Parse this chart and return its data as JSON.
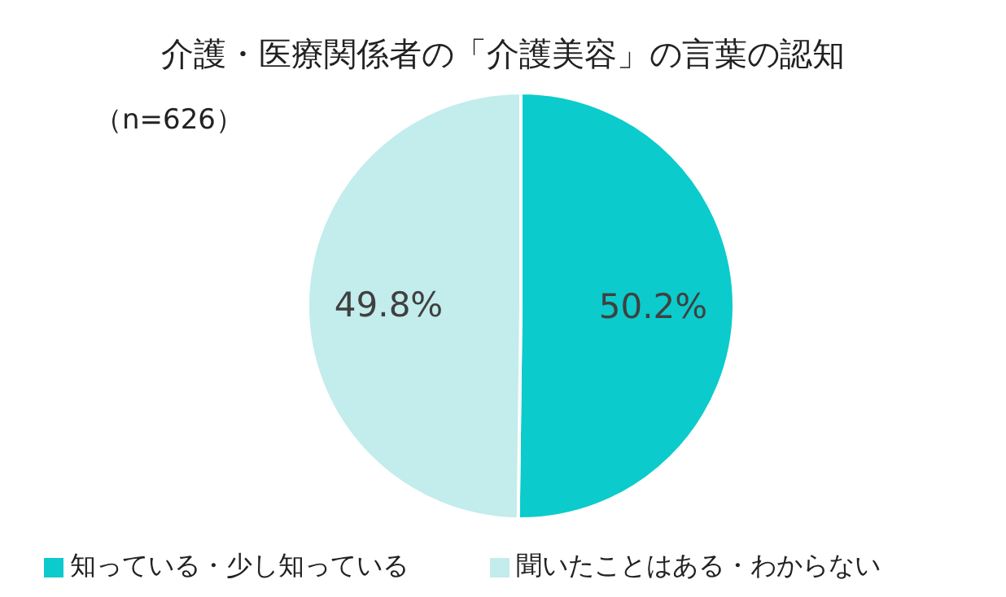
{
  "chart_data": {
    "type": "pie",
    "title": "介護・医療関係者の「介護美容」の言葉の認知",
    "subtitle": "（n=626）",
    "categories": [
      "知っている・少し知っている",
      "聞いたことはある・わからない"
    ],
    "values": [
      50.2,
      49.8
    ],
    "colors": [
      "#0ccbcc",
      "#c3ecec"
    ],
    "value_labels": [
      "50.2%",
      "49.8%"
    ],
    "legend": "bottom"
  }
}
